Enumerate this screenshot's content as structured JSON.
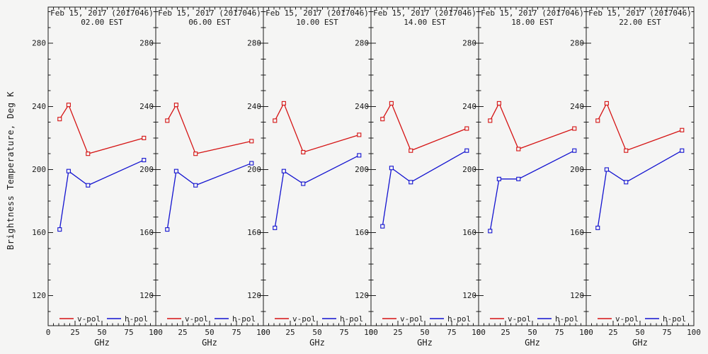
{
  "page": {
    "background": "#f5f5f4",
    "axis_color": "#1a1a1a"
  },
  "chart_data": {
    "type": "line",
    "ylabel": "Brightness Temperature, Deg K",
    "xlabel": "GHz",
    "x": [
      10.7,
      19,
      37,
      89
    ],
    "xlim": [
      0,
      100
    ],
    "ylim": [
      101,
      303
    ],
    "x_major_ticks": [
      0,
      25,
      50,
      75,
      100
    ],
    "x_minor_step": 5,
    "y_major_ticks": [
      280,
      240,
      200,
      160,
      120
    ],
    "y_minor_step": 10,
    "grid": false,
    "legend": [
      "v-pol",
      "h-pol"
    ],
    "legend_position": "bottom-inside-each-panel",
    "series_colors": {
      "v-pol": "#d51313",
      "h-pol": "#1313d0"
    },
    "panels": [
      {
        "title": "Feb 15, 2017 (2017046)",
        "subtitle": "02.00 EST",
        "series": [
          {
            "name": "v-pol",
            "color": "#d51313",
            "values": [
              232,
              241,
              210,
              220
            ]
          },
          {
            "name": "h-pol",
            "color": "#1313d0",
            "values": [
              162,
              199,
              190,
              206
            ]
          }
        ]
      },
      {
        "title": "Feb 15, 2017 (2017046)",
        "subtitle": "06.00 EST",
        "series": [
          {
            "name": "v-pol",
            "color": "#d51313",
            "values": [
              231,
              241,
              210,
              218
            ]
          },
          {
            "name": "h-pol",
            "color": "#1313d0",
            "values": [
              162,
              199,
              190,
              204
            ]
          }
        ]
      },
      {
        "title": "Feb 15, 2017 (2017046)",
        "subtitle": "10.00 EST",
        "series": [
          {
            "name": "v-pol",
            "color": "#d51313",
            "values": [
              231,
              242,
              211,
              222
            ]
          },
          {
            "name": "h-pol",
            "color": "#1313d0",
            "values": [
              163,
              199,
              191,
              209
            ]
          }
        ]
      },
      {
        "title": "Feb 15, 2017 (2017046)",
        "subtitle": "14.00 EST",
        "series": [
          {
            "name": "v-pol",
            "color": "#d51313",
            "values": [
              232,
              242,
              212,
              226
            ]
          },
          {
            "name": "h-pol",
            "color": "#1313d0",
            "values": [
              164,
              201,
              192,
              212
            ]
          }
        ]
      },
      {
        "title": "Feb 15, 2017 (2017046)",
        "subtitle": "18.00 EST",
        "series": [
          {
            "name": "v-pol",
            "color": "#d51313",
            "values": [
              231,
              242,
              213,
              226
            ]
          },
          {
            "name": "h-pol",
            "color": "#1313d0",
            "values": [
              161,
              194,
              194,
              212
            ]
          }
        ]
      },
      {
        "title": "Feb 15, 2017 (2017046)",
        "subtitle": "22.00 EST",
        "series": [
          {
            "name": "v-pol",
            "color": "#d51313",
            "values": [
              231,
              242,
              212,
              225
            ]
          },
          {
            "name": "h-pol",
            "color": "#1313d0",
            "values": [
              163,
              200,
              192,
              212
            ]
          }
        ]
      }
    ]
  }
}
